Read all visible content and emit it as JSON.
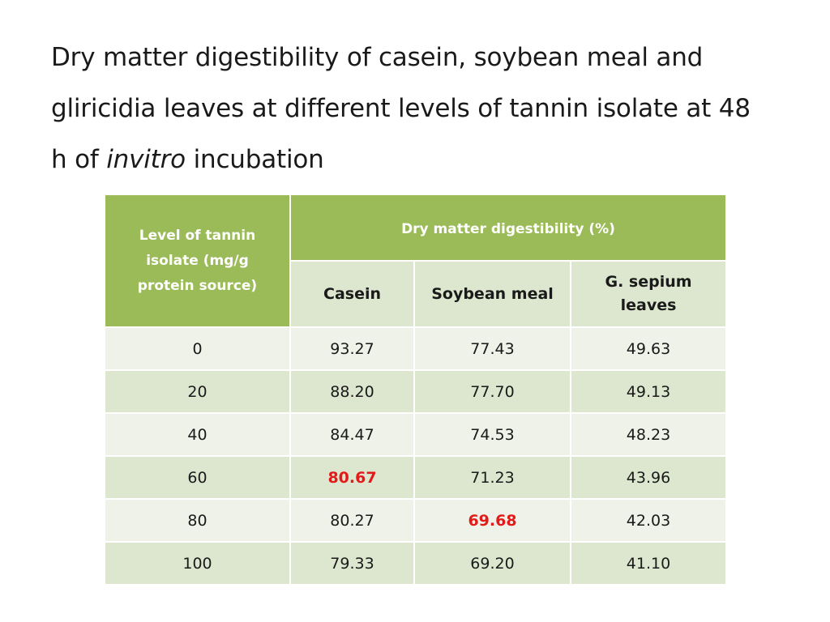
{
  "title": {
    "line1": "Dry matter digestibility of casein, soybean meal and",
    "line2": "gliricidia leaves at different levels of tannin isolate at 48",
    "line3_prefix": "h of ",
    "line3_italic": "invitro",
    "line3_suffix": " incubation"
  },
  "table": {
    "level_header": "Level of tannin isolate (mg/g protein source)",
    "group_header": "Dry matter digestibility (%)",
    "columns": [
      "Casein",
      "Soybean meal",
      "G. sepium leaves"
    ],
    "rows": [
      {
        "level": "0",
        "casein": "93.27",
        "soybean": "77.43",
        "gsepium": "49.63"
      },
      {
        "level": "20",
        "casein": "88.20",
        "soybean": "77.70",
        "gsepium": "49.13"
      },
      {
        "level": "40",
        "casein": "84.47",
        "soybean": "74.53",
        "gsepium": "48.23"
      },
      {
        "level": "60",
        "casein": "80.67",
        "soybean": "71.23",
        "gsepium": "43.96"
      },
      {
        "level": "80",
        "casein": "80.27",
        "soybean": "69.68",
        "gsepium": "42.03"
      },
      {
        "level": "100",
        "casein": "79.33",
        "soybean": "69.20",
        "gsepium": "41.10"
      }
    ]
  },
  "colors": {
    "header_green": "#9bbb59",
    "row_light": "#eef2e8",
    "row_dark": "#dde7cf",
    "highlight_red": "#e31a1a"
  }
}
